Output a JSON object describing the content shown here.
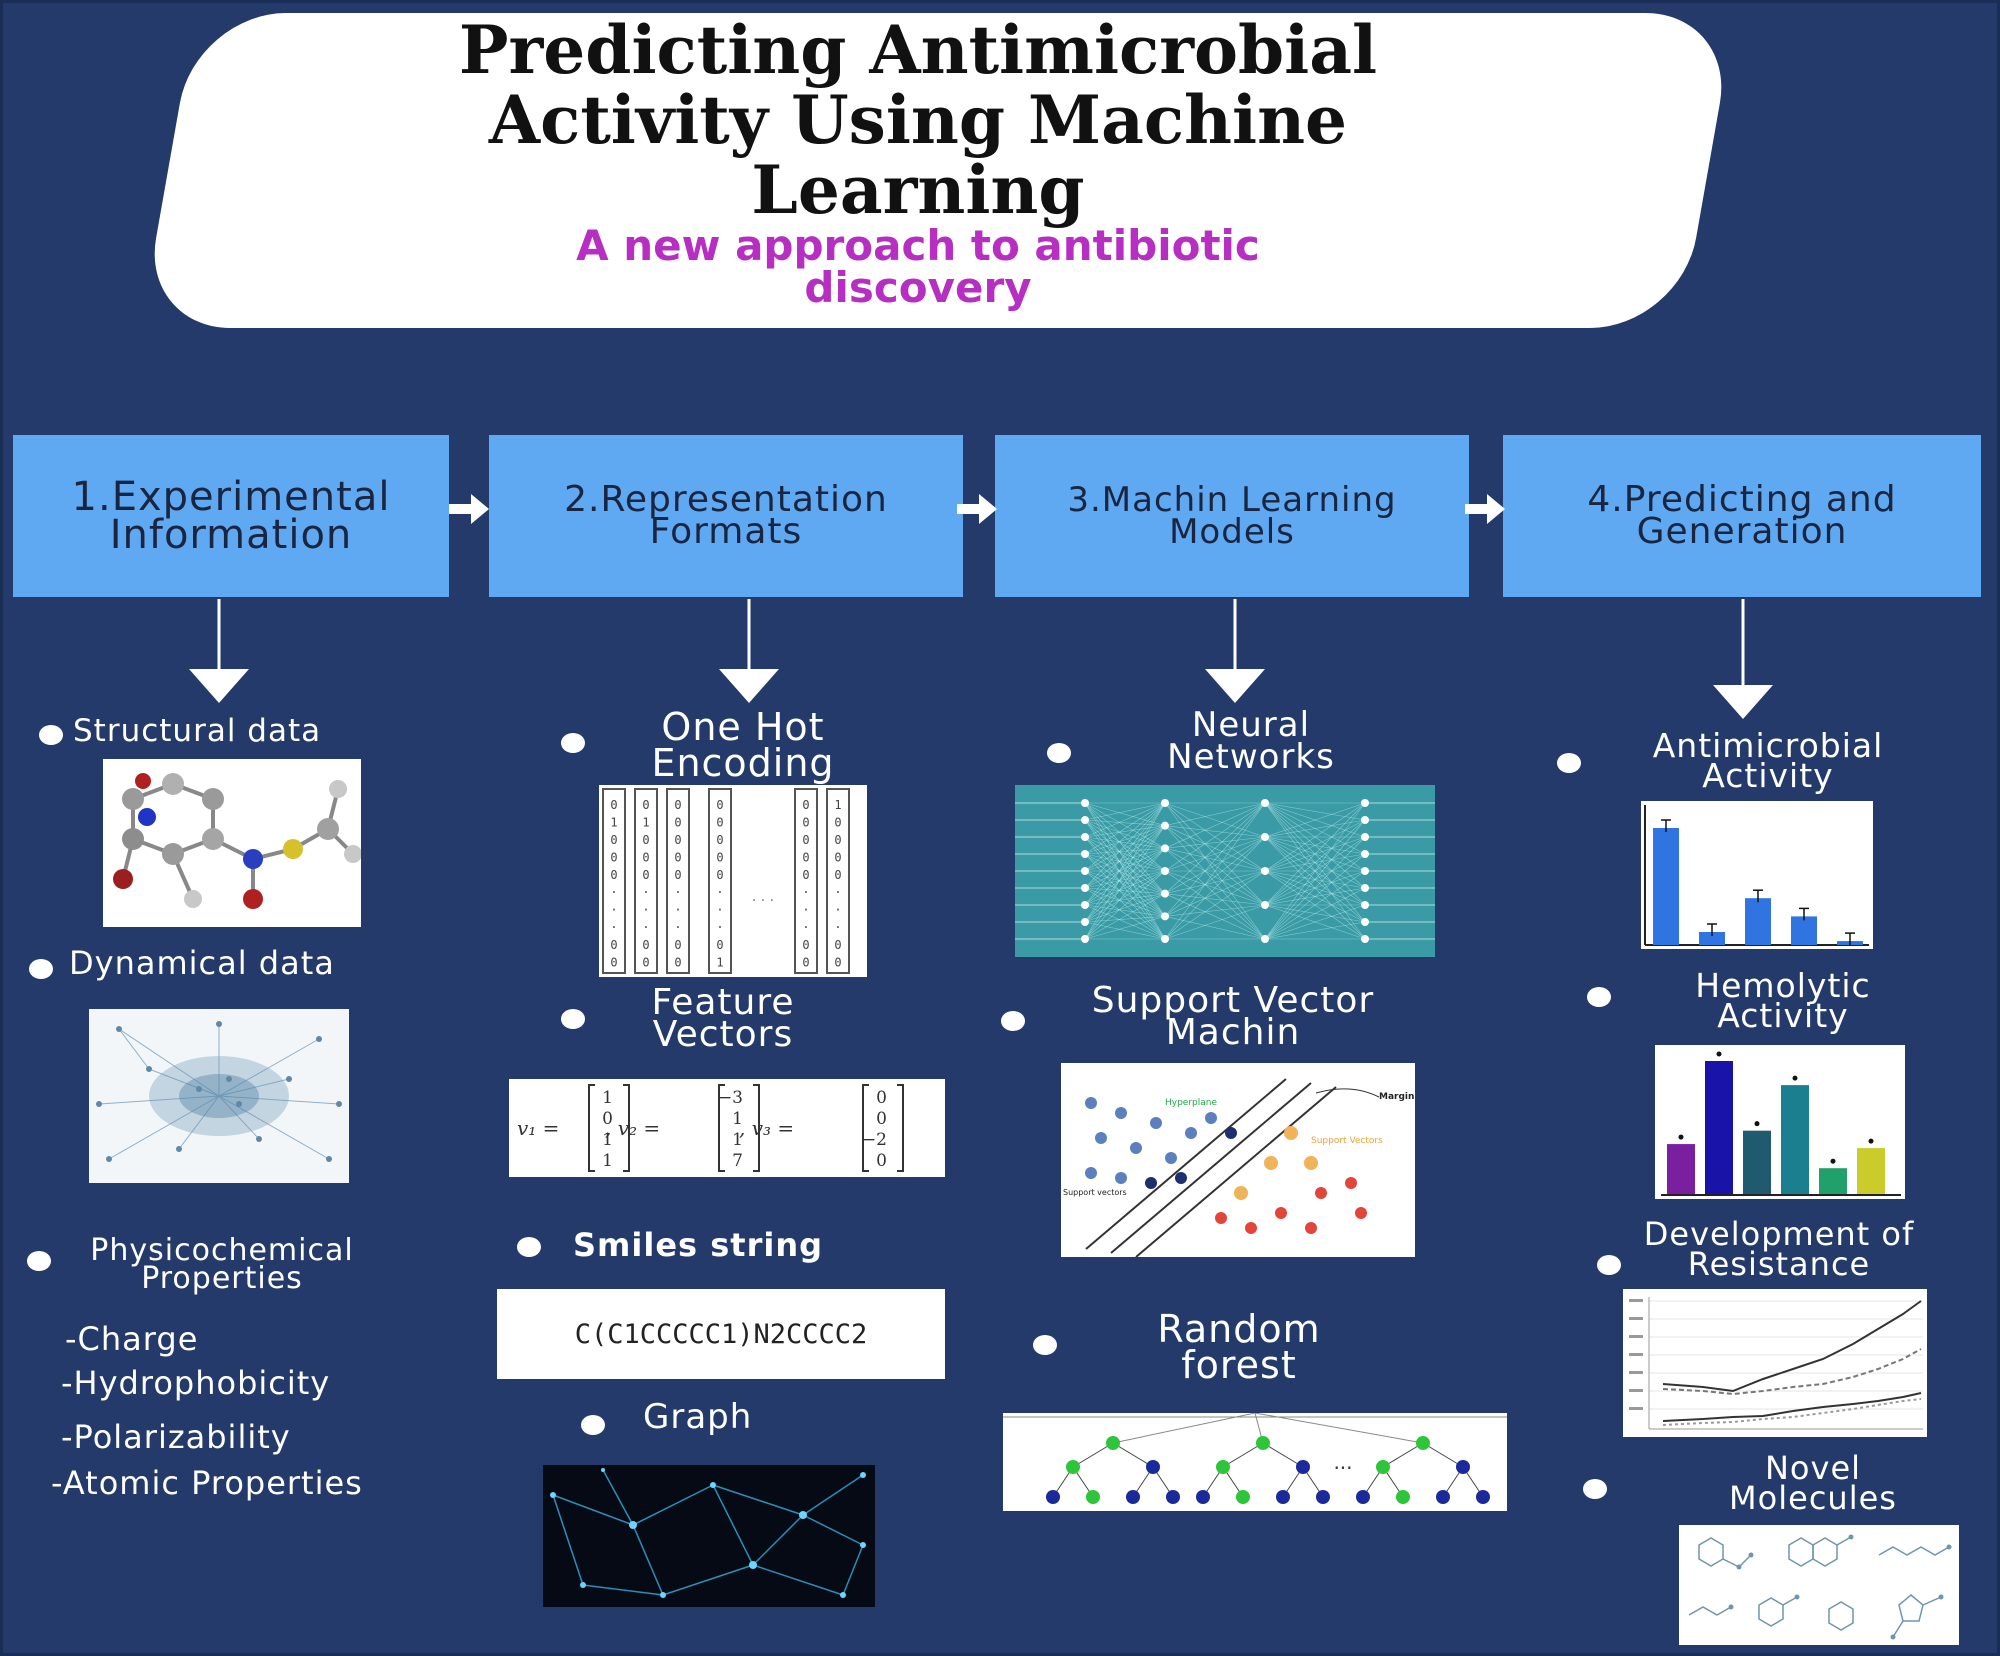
{
  "title": {
    "line1": "Predicting Antimicrobial",
    "line2": "Activity Using Machine",
    "line3": "Learning",
    "subtitle_line1": "A new approach to antibiotic",
    "subtitle_line2": "discovery"
  },
  "steps": [
    {
      "line1": "1.Experimental",
      "line2": "Information"
    },
    {
      "line1": "2.Representation",
      "line2": "Formats"
    },
    {
      "line1": "3.Machin Learning",
      "line2": "Models"
    },
    {
      "line1": "4.Predicting and",
      "line2": "Generation"
    }
  ],
  "col1": {
    "structural": "Structural data",
    "dynamical": "Dynamical data",
    "physico_line1": "Physicochemical",
    "physico_line2": "Properties",
    "props": [
      "-Charge",
      "-Hydrophobicity",
      "-Polarizability",
      "-Atomic Properties"
    ]
  },
  "col2": {
    "onehot_line1": "One Hot",
    "onehot_line2": "Encoding",
    "feature_line1": "Feature",
    "feature_line2": "Vectors",
    "smiles_label": "Smiles string",
    "smiles_value": "C(C1CCCCC1)N2CCCC2",
    "graph": "Graph",
    "onehot_cols": [
      [
        "0",
        "1",
        "0",
        "0",
        "0",
        "·",
        "·",
        "·",
        "0",
        "0"
      ],
      [
        "0",
        "1",
        "0",
        "0",
        "0",
        "·",
        "·",
        "·",
        "0",
        "0"
      ],
      [
        "0",
        "0",
        "0",
        "0",
        "0",
        "·",
        "·",
        "·",
        "0",
        "0"
      ],
      [
        "0",
        "0",
        "0",
        "0",
        "0",
        "·",
        "·",
        "·",
        "0",
        "1"
      ],
      [
        "0",
        "0",
        "0",
        "0",
        "0",
        "·",
        "·",
        "·",
        "0",
        "0"
      ],
      [
        "1",
        "0",
        "0",
        "0",
        "0",
        "·",
        "·",
        "·",
        "0",
        "0"
      ]
    ],
    "vec1_name": "v₁ =",
    "vec1": [
      "1",
      "0",
      "1",
      "1"
    ],
    "vec2_name": ", v₂ =",
    "vec2": [
      "−3",
      "1",
      "1",
      "7"
    ],
    "vec3_name": ", v₃ =",
    "vec3": [
      "0",
      "0",
      "−2",
      "0"
    ]
  },
  "col3": {
    "nn_line1": "Neural",
    "nn_line2": "Networks",
    "svm_line1": "Support Vector",
    "svm_line2": "Machin",
    "svm_hyperplane": "Hyperplane",
    "svm_margin": "Margin",
    "svm_support_vectors": "Support Vectors",
    "svm_support_vectors_left": "Support vectors",
    "rf_line1": "Random",
    "rf_line2": "forest",
    "rf_dots": "···"
  },
  "col4": {
    "am_line1": "Antimicrobial",
    "am_line2": "Activity",
    "hem_line1": "Hemolytic",
    "hem_line2": "Activity",
    "res_line1": "Development of",
    "res_line2": "Resistance",
    "novel_line1": "Novel",
    "novel_line2": "Molecules",
    "am_bars": [
      0.9,
      0.1,
      0.36,
      0.22,
      0.03
    ],
    "am_bar_color": "#2f74e0",
    "hem_bars": [
      0.38,
      1.0,
      0.48,
      0.82,
      0.2,
      0.35
    ],
    "hem_bar_colors": [
      "#7a1fa0",
      "#1a13a8",
      "#1f5a6e",
      "#1c7f8f",
      "#22a06b",
      "#c9cc2a"
    ]
  },
  "colors": {
    "background": "#233a6b",
    "step_box": "#5ea9f2",
    "subtitle": "#b62fc2"
  }
}
